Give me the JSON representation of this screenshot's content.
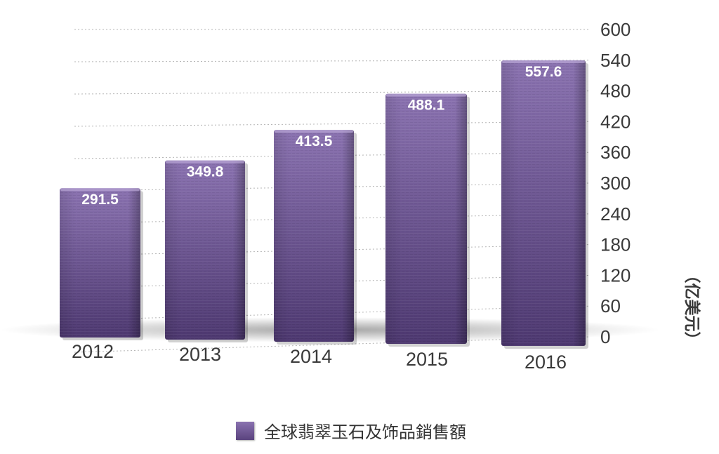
{
  "chart_data": {
    "type": "bar",
    "categories": [
      "2012",
      "2013",
      "2014",
      "2015",
      "2016"
    ],
    "series": [
      {
        "name": "全球翡翠玉石及饰品銷售額",
        "values": [
          291.5,
          349.8,
          413.5,
          488.1,
          557.6
        ]
      }
    ],
    "data_labels": [
      "291.5",
      "349.8",
      "413.5",
      "488.1",
      "557.6"
    ],
    "ylabel": "（亿美元）",
    "y_ticks": [
      "0",
      "60",
      "120",
      "180",
      "240",
      "300",
      "360",
      "420",
      "480",
      "540",
      "600"
    ],
    "ylim": [
      0,
      600
    ],
    "y_axis_position": "right",
    "grid": true,
    "legend_position": "bottom-center"
  },
  "colors": {
    "bar_top": "#8a72b0",
    "bar_bottom": "#4d3870",
    "grid": "#b5b5b5",
    "text": "#3a3a3a",
    "label": "#ffffff"
  }
}
